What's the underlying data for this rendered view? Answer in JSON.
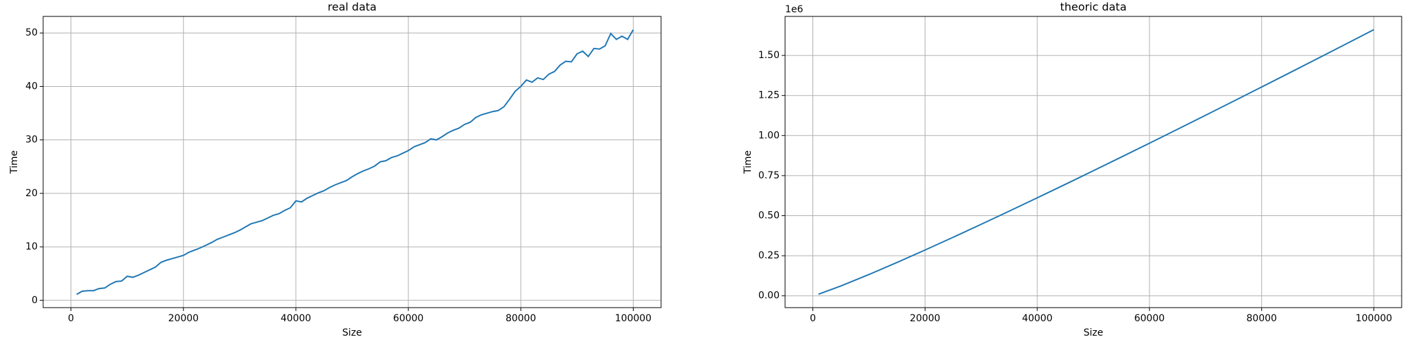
{
  "chart_data": [
    {
      "type": "line",
      "title": "real data",
      "xlabel": "Size",
      "ylabel": "Time",
      "x": [
        1000,
        2000,
        3000,
        4000,
        5000,
        6000,
        7000,
        8000,
        9000,
        10000,
        11000,
        12000,
        13000,
        14000,
        15000,
        16000,
        17000,
        18000,
        19000,
        20000,
        21000,
        22000,
        23000,
        24000,
        25000,
        26000,
        27000,
        28000,
        29000,
        30000,
        31000,
        32000,
        33000,
        34000,
        35000,
        36000,
        37000,
        38000,
        39000,
        40000,
        41000,
        42000,
        43000,
        44000,
        45000,
        46000,
        47000,
        48000,
        49000,
        50000,
        51000,
        52000,
        53000,
        54000,
        55000,
        56000,
        57000,
        58000,
        59000,
        60000,
        61000,
        62000,
        63000,
        64000,
        65000,
        66000,
        67000,
        68000,
        69000,
        70000,
        71000,
        72000,
        73000,
        74000,
        75000,
        76000,
        77000,
        78000,
        79000,
        80000,
        81000,
        82000,
        83000,
        84000,
        85000,
        86000,
        87000,
        88000,
        89000,
        90000,
        91000,
        92000,
        93000,
        94000,
        95000,
        96000,
        97000,
        98000,
        99000,
        100000
      ],
      "series": [
        {
          "color": "#1f77b4",
          "values": [
            1.1,
            1.7,
            1.8,
            1.8,
            2.2,
            2.3,
            3.0,
            3.5,
            3.6,
            4.5,
            4.3,
            4.7,
            5.2,
            5.7,
            6.2,
            7.1,
            7.5,
            7.8,
            8.1,
            8.4,
            9.0,
            9.4,
            9.8,
            10.3,
            10.8,
            11.4,
            11.8,
            12.2,
            12.6,
            13.1,
            13.7,
            14.3,
            14.6,
            14.9,
            15.4,
            15.9,
            16.2,
            16.8,
            17.3,
            18.6,
            18.4,
            19.1,
            19.6,
            20.1,
            20.5,
            21.1,
            21.6,
            22.0,
            22.4,
            23.1,
            23.7,
            24.2,
            24.6,
            25.1,
            25.9,
            26.1,
            26.7,
            27.0,
            27.5,
            28.0,
            28.7,
            29.1,
            29.5,
            30.2,
            30.0,
            30.6,
            31.3,
            31.8,
            32.2,
            32.9,
            33.3,
            34.2,
            34.7,
            35.0,
            35.3,
            35.5,
            36.2,
            37.6,
            39.1,
            40.0,
            41.2,
            40.8,
            41.6,
            41.3,
            42.3,
            42.8,
            44.0,
            44.7,
            44.6,
            46.1,
            46.6,
            45.6,
            47.1,
            47.0,
            47.6,
            49.9,
            48.8,
            49.4,
            48.8,
            50.6
          ]
        }
      ],
      "xlim": [
        -4950,
        104950
      ],
      "xticks": [
        0,
        20000,
        40000,
        60000,
        80000,
        100000
      ],
      "ylim": [
        -1.37,
        53.1
      ],
      "yticks": [
        0,
        10,
        20,
        30,
        40,
        50
      ],
      "grid": true
    },
    {
      "type": "line",
      "title": "theoric data",
      "xlabel": "Size",
      "ylabel": "Time",
      "y_offset_label": "1e6",
      "x": [
        1000,
        5000,
        10000,
        15000,
        20000,
        25000,
        30000,
        35000,
        40000,
        45000,
        50000,
        55000,
        60000,
        65000,
        70000,
        75000,
        80000,
        85000,
        90000,
        95000,
        100000
      ],
      "series": [
        {
          "color": "#1f77b4",
          "values": [
            9966,
            61439,
            132877,
            208090,
            285754,
            365241,
            446180,
            528328,
            611508,
            695592,
            780482,
            866092,
            952360,
            1039230,
            1126654,
            1214597,
            1303017,
            1391888,
            1481187,
            1570882,
            1660964
          ]
        }
      ],
      "xlim": [
        -4950,
        104950
      ],
      "xticks": [
        0,
        20000,
        40000,
        60000,
        80000,
        100000
      ],
      "ylim": [
        -73600,
        1743500
      ],
      "yticks": [
        {
          "value": 0,
          "label": "0.00"
        },
        {
          "value": 250000,
          "label": "0.25"
        },
        {
          "value": 500000,
          "label": "0.50"
        },
        {
          "value": 750000,
          "label": "0.75"
        },
        {
          "value": 1000000,
          "label": "1.00"
        },
        {
          "value": 1250000,
          "label": "1.25"
        },
        {
          "value": 1500000,
          "label": "1.50"
        }
      ],
      "grid": true
    }
  ]
}
